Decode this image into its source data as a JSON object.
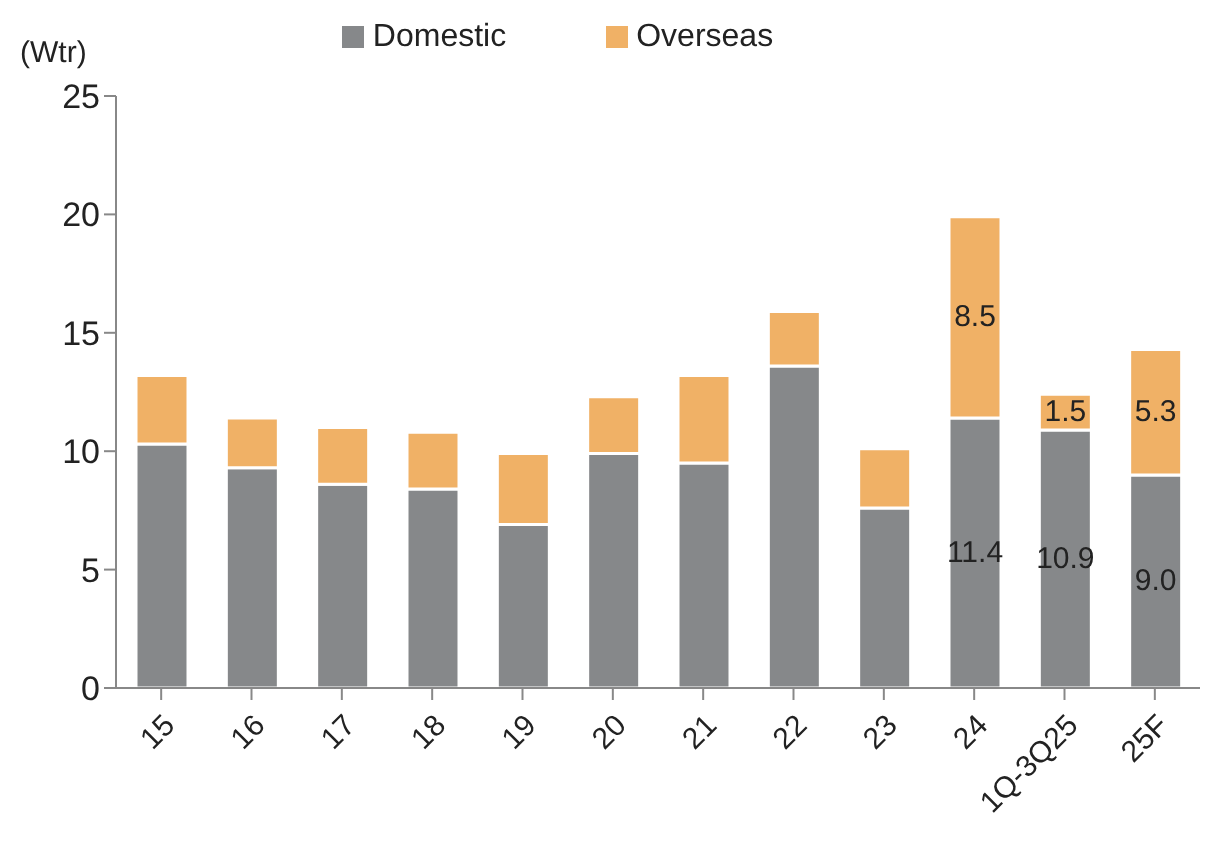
{
  "chart_data": {
    "type": "bar",
    "ylabel": "(Wtr)",
    "stacked": true,
    "categories": [
      "15",
      "16",
      "17",
      "18",
      "19",
      "20",
      "21",
      "22",
      "23",
      "24",
      "1Q-3Q25",
      "25F"
    ],
    "series": [
      {
        "name": "Domestic",
        "color": "#86888a",
        "values": [
          10.3,
          9.3,
          8.6,
          8.4,
          6.9,
          9.9,
          9.5,
          13.6,
          7.6,
          11.4,
          10.9,
          9.0
        ],
        "value_labels": [
          null,
          null,
          null,
          null,
          null,
          null,
          null,
          null,
          null,
          "11.4",
          "10.9",
          "9.0"
        ]
      },
      {
        "name": "Overseas",
        "color": "#f0b166",
        "values": [
          2.9,
          2.1,
          2.4,
          2.4,
          3.0,
          2.4,
          3.7,
          2.3,
          2.5,
          8.5,
          1.5,
          5.3
        ],
        "value_labels": [
          null,
          null,
          null,
          null,
          null,
          null,
          null,
          null,
          null,
          "8.5",
          "1.5",
          "5.3"
        ]
      }
    ],
    "ylim": [
      0,
      25
    ],
    "yticks": [
      0,
      5,
      10,
      15,
      20,
      25
    ],
    "legend": "top",
    "grid": false
  }
}
